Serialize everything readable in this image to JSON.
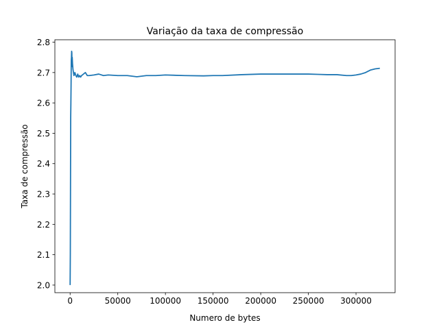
{
  "chart_data": {
    "type": "line",
    "title": "Variação da taxa de compressão",
    "xlabel": "Numero de bytes",
    "ylabel": "Taxa de compressão",
    "xlim": [
      -16000,
      341000
    ],
    "ylim": [
      1.975,
      2.808
    ],
    "x_ticks": [
      0,
      50000,
      100000,
      150000,
      200000,
      250000,
      300000
    ],
    "x_tick_labels": [
      "0",
      "50000",
      "100000",
      "150000",
      "200000",
      "250000",
      "300000"
    ],
    "y_ticks": [
      2.0,
      2.1,
      2.2,
      2.3,
      2.4,
      2.5,
      2.6,
      2.7,
      2.8
    ],
    "y_tick_labels": [
      "2.0",
      "2.1",
      "2.2",
      "2.3",
      "2.4",
      "2.5",
      "2.6",
      "2.7",
      "2.8"
    ],
    "grid": false,
    "series": [
      {
        "name": "Taxa de compressão",
        "color": "#1f77b4",
        "x": [
          0,
          200,
          400,
          600,
          800,
          1000,
          1200,
          1400,
          1600,
          1800,
          2000,
          2200,
          2500,
          3000,
          3500,
          4000,
          5000,
          6000,
          7000,
          8000,
          9000,
          10000,
          11000,
          12000,
          14000,
          16000,
          18000,
          20000,
          25000,
          30000,
          35000,
          40000,
          50000,
          60000,
          70000,
          75000,
          80000,
          90000,
          100000,
          120000,
          140000,
          150000,
          160000,
          180000,
          200000,
          220000,
          240000,
          250000,
          260000,
          270000,
          280000,
          290000,
          295000,
          300000,
          305000,
          310000,
          315000,
          320000,
          325000
        ],
        "y": [
          2.0,
          2.1,
          2.33,
          2.55,
          2.6,
          2.66,
          2.74,
          2.75,
          2.77,
          2.765,
          2.72,
          2.75,
          2.73,
          2.71,
          2.7,
          2.69,
          2.7,
          2.69,
          2.685,
          2.695,
          2.685,
          2.69,
          2.685,
          2.69,
          2.695,
          2.7,
          2.69,
          2.69,
          2.692,
          2.695,
          2.69,
          2.692,
          2.69,
          2.69,
          2.686,
          2.688,
          2.69,
          2.69,
          2.692,
          2.69,
          2.689,
          2.69,
          2.69,
          2.693,
          2.695,
          2.695,
          2.695,
          2.695,
          2.694,
          2.693,
          2.693,
          2.69,
          2.69,
          2.692,
          2.695,
          2.7,
          2.708,
          2.712,
          2.714
        ]
      }
    ]
  }
}
